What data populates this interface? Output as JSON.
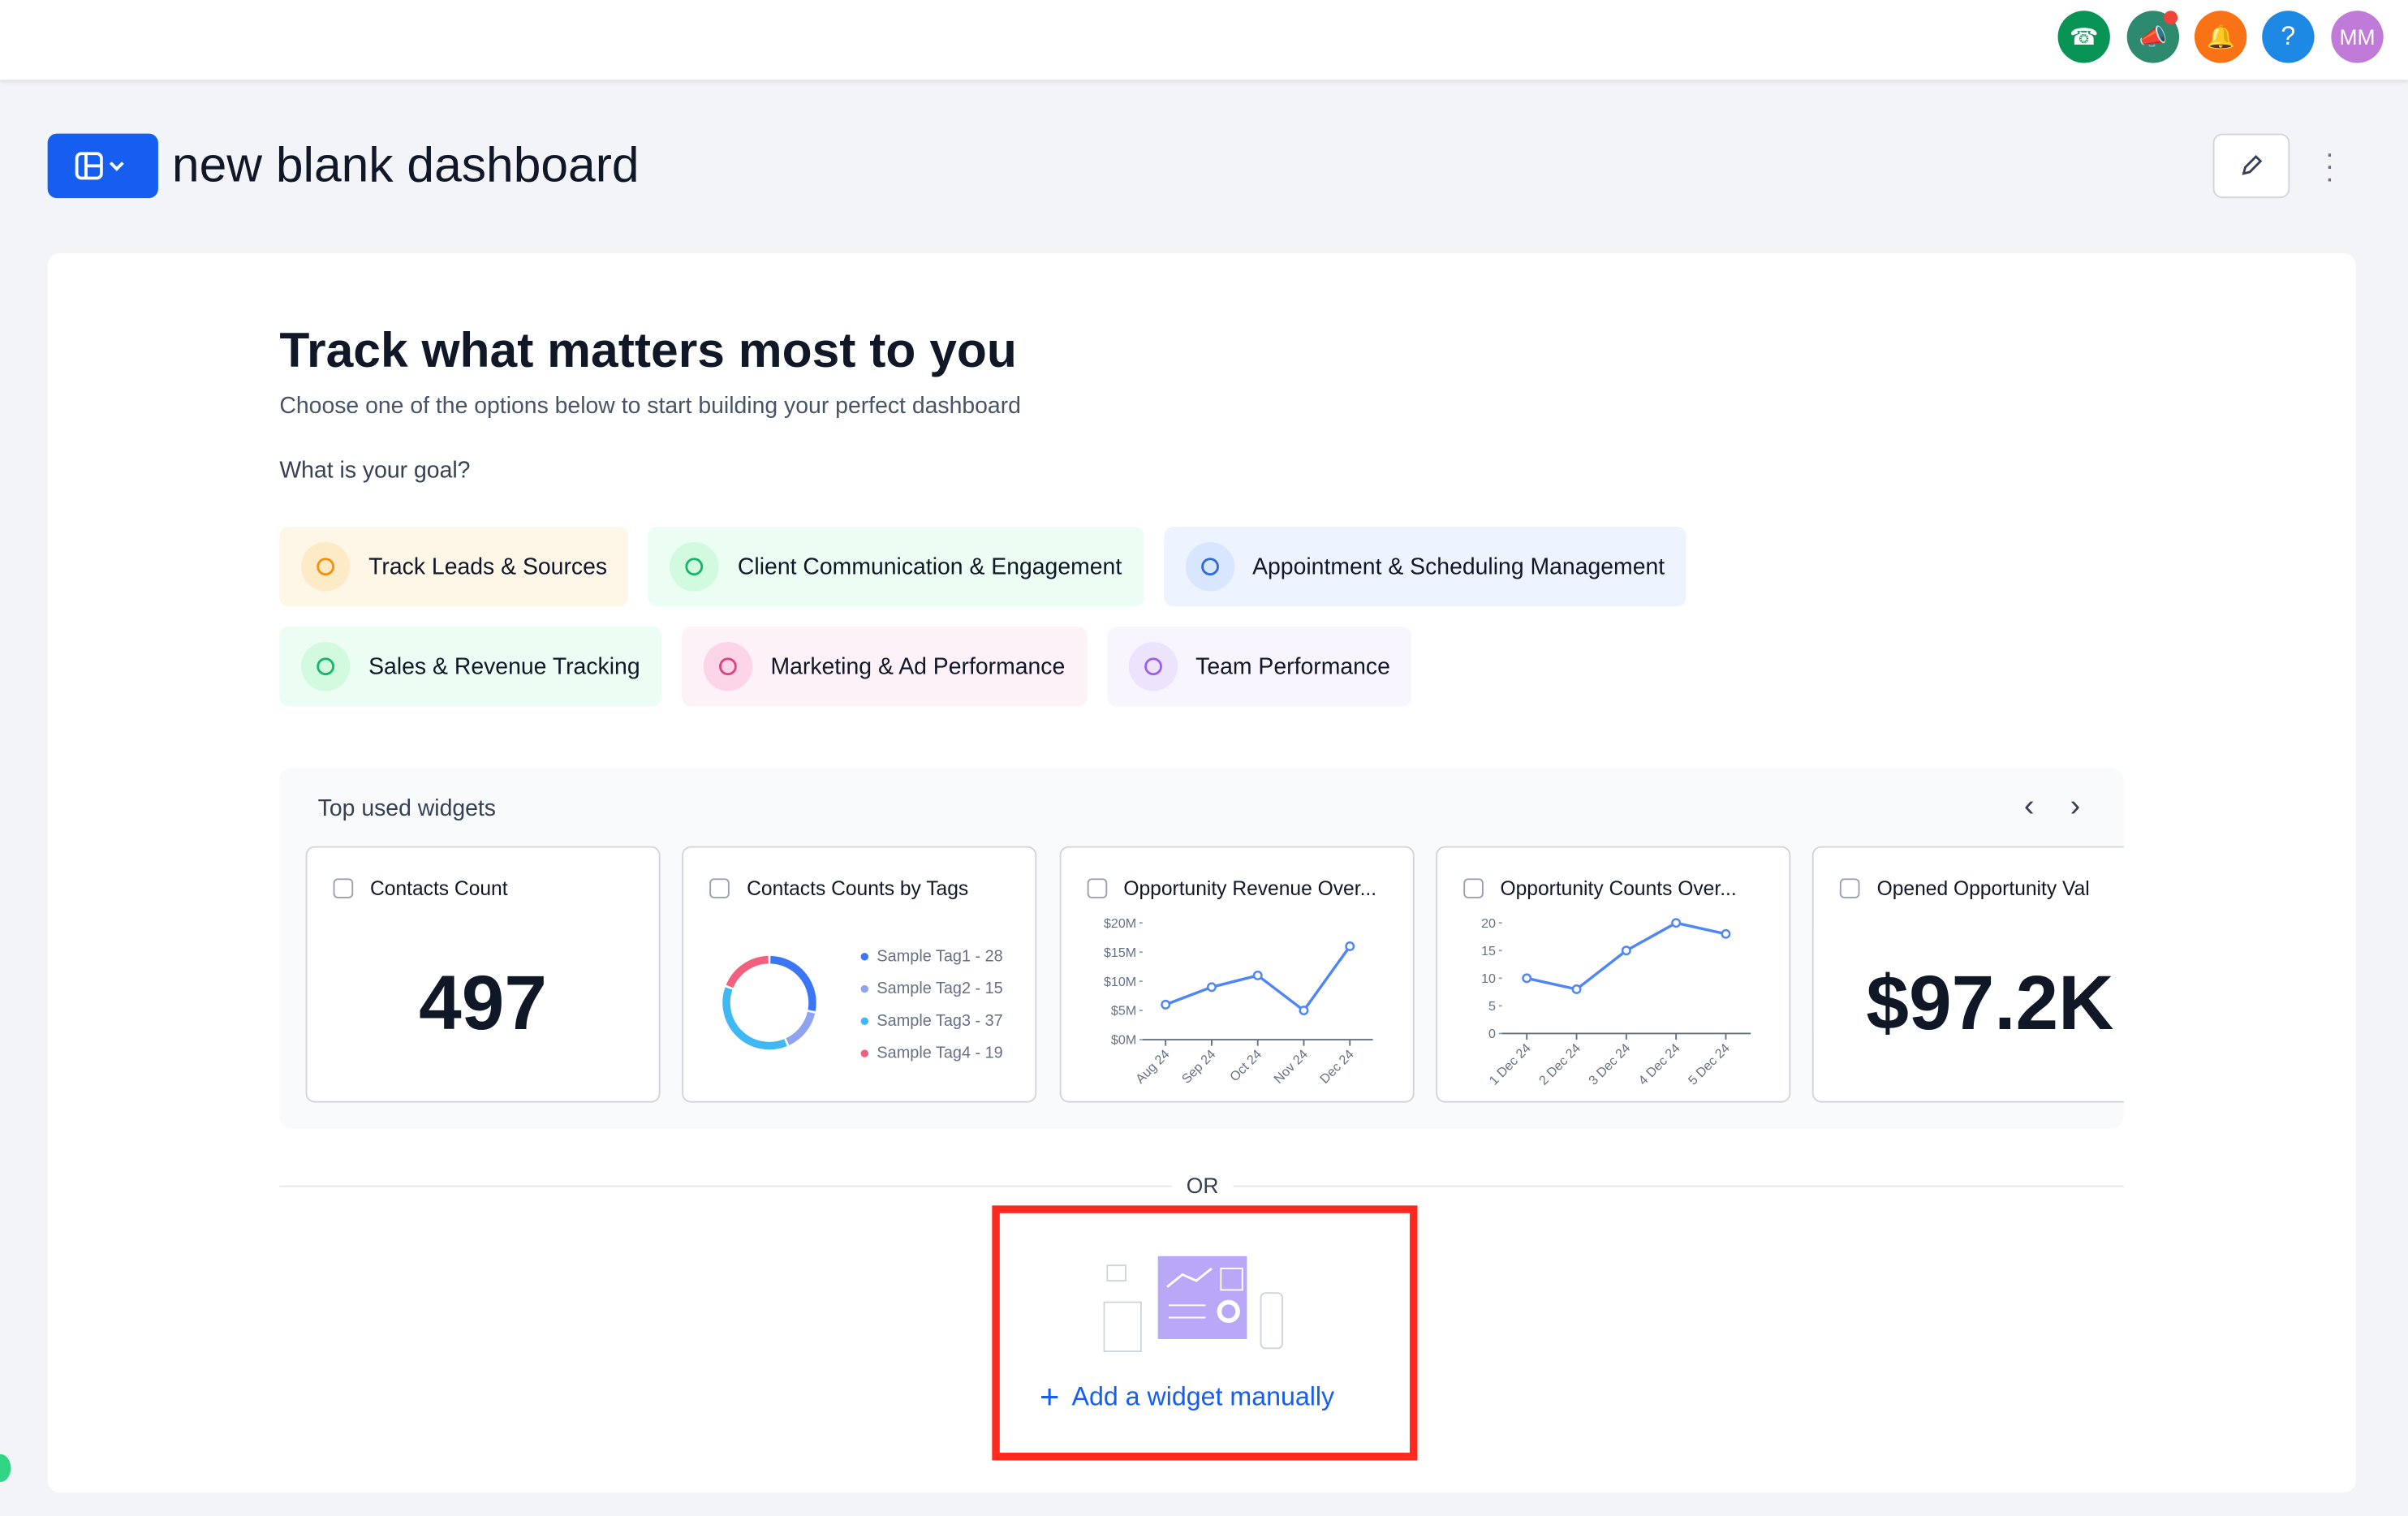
{
  "header": {
    "avatar": "MM",
    "help": "?"
  },
  "page_title": "new blank dashboard",
  "hero": {
    "title": "Track what matters most to you",
    "subtitle": "Choose one of the options below to start building your perfect dashboard",
    "goal_question": "What is your goal?",
    "goals": [
      "Track Leads & Sources",
      "Client Communication & Engagement",
      "Appointment & Scheduling Management",
      "Sales & Revenue Tracking",
      "Marketing & Ad Performance",
      "Team Performance"
    ]
  },
  "top_widgets": {
    "title": "Top used widgets",
    "widgets": [
      {
        "type": "kpi",
        "title": "Contacts Count",
        "value": "497"
      },
      {
        "type": "donut",
        "title": "Contacts Counts by Tags",
        "items": [
          {
            "label": "Sample Tag1 - 28",
            "value": 28,
            "color": "#3b76f6"
          },
          {
            "label": "Sample Tag2 - 15",
            "value": 15,
            "color": "#8fa3f2"
          },
          {
            "label": "Sample Tag3 - 37",
            "value": 37,
            "color": "#3fb8f3"
          },
          {
            "label": "Sample Tag4 - 19",
            "value": 19,
            "color": "#f3607e"
          }
        ]
      },
      {
        "type": "line",
        "title": "Opportunity Revenue Over...",
        "color": "#4f86f7",
        "categories": [
          "Aug 24",
          "Sep 24",
          "Oct 24",
          "Nov 24",
          "Dec 24"
        ],
        "values": [
          6,
          9,
          11,
          5,
          16
        ],
        "ylim": [
          0,
          20
        ],
        "yticks": [
          {
            "value": 0,
            "label": "$0M"
          },
          {
            "value": 5,
            "label": "$5M"
          },
          {
            "value": 10,
            "label": "$10M"
          },
          {
            "value": 15,
            "label": "$15M"
          },
          {
            "value": 20,
            "label": "$20M"
          }
        ]
      },
      {
        "type": "line",
        "title": "Opportunity Counts Over...",
        "color": "#4f86f7",
        "categories": [
          "1 Dec 24",
          "2 Dec 24",
          "3 Dec 24",
          "4 Dec 24",
          "5 Dec 24"
        ],
        "values": [
          10,
          8,
          15,
          20,
          18
        ],
        "ylim": [
          0,
          20
        ],
        "yticks": [
          0,
          5,
          10,
          15,
          20
        ]
      },
      {
        "type": "kpi",
        "title": "Opened Opportunity Val",
        "value": "$97.2K"
      }
    ]
  },
  "divider": "OR",
  "add_widget": "Add a widget manually"
}
